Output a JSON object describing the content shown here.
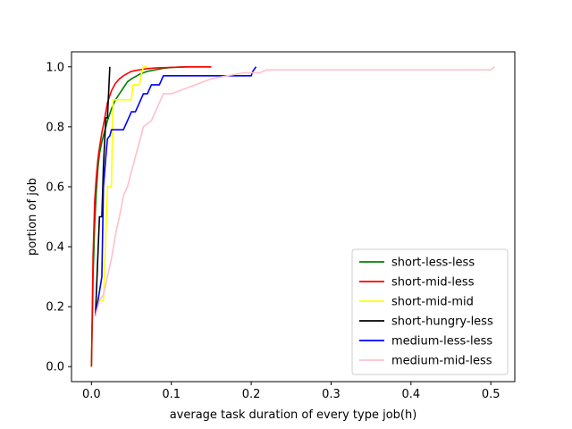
{
  "chart_data": {
    "type": "line",
    "title": "",
    "xlabel": "average task duration of every type job(h)",
    "ylabel": "portion of job",
    "xlim": [
      -0.025,
      0.53
    ],
    "ylim": [
      -0.05,
      1.05
    ],
    "x_ticks": [
      0.0,
      0.1,
      0.2,
      0.3,
      0.4,
      0.5
    ],
    "y_ticks": [
      0.0,
      0.2,
      0.4,
      0.6,
      0.8,
      1.0
    ],
    "x_tick_labels": [
      "0.0",
      "0.1",
      "0.2",
      "0.3",
      "0.4",
      "0.5"
    ],
    "y_tick_labels": [
      "0.0",
      "0.2",
      "0.4",
      "0.6",
      "0.8",
      "1.0"
    ],
    "grid": false,
    "legend_position": "lower-right",
    "series": [
      {
        "name": "short-less-less",
        "color": "#008000",
        "x": [
          0.0,
          0.002,
          0.004,
          0.006,
          0.008,
          0.01,
          0.013,
          0.016,
          0.02,
          0.025,
          0.03,
          0.035,
          0.04,
          0.045,
          0.05,
          0.06,
          0.07,
          0.08,
          0.09,
          0.1,
          0.12,
          0.15
        ],
        "y": [
          0.0,
          0.3,
          0.47,
          0.58,
          0.66,
          0.71,
          0.75,
          0.78,
          0.82,
          0.86,
          0.89,
          0.91,
          0.93,
          0.95,
          0.96,
          0.975,
          0.985,
          0.99,
          0.995,
          0.998,
          1.0,
          1.0
        ]
      },
      {
        "name": "short-mid-less",
        "color": "#ff0000",
        "x": [
          0.0,
          0.002,
          0.004,
          0.006,
          0.008,
          0.01,
          0.013,
          0.016,
          0.02,
          0.025,
          0.03,
          0.035,
          0.04,
          0.045,
          0.05,
          0.06,
          0.07,
          0.08,
          0.1,
          0.12,
          0.15
        ],
        "y": [
          0.0,
          0.37,
          0.55,
          0.63,
          0.69,
          0.73,
          0.78,
          0.82,
          0.88,
          0.92,
          0.945,
          0.96,
          0.97,
          0.978,
          0.985,
          0.99,
          0.994,
          0.996,
          0.998,
          1.0,
          1.0
        ]
      },
      {
        "name": "short-mid-mid",
        "color": "#ffff00",
        "x": [
          0.005,
          0.01,
          0.015,
          0.02,
          0.025,
          0.027,
          0.03,
          0.033,
          0.04,
          0.05,
          0.052,
          0.06,
          0.062,
          0.065,
          0.07
        ],
        "y": [
          0.22,
          0.22,
          0.22,
          0.6,
          0.6,
          0.89,
          0.89,
          0.89,
          0.89,
          0.89,
          0.94,
          0.94,
          0.97,
          1.0,
          1.0
        ]
      },
      {
        "name": "short-hungry-less",
        "color": "#000000",
        "x": [
          0.005,
          0.01,
          0.013,
          0.015,
          0.018,
          0.02,
          0.023
        ],
        "y": [
          0.17,
          0.5,
          0.5,
          0.67,
          0.83,
          0.83,
          1.0
        ]
      },
      {
        "name": "medium-less-less",
        "color": "#0000ff",
        "x": [
          0.005,
          0.01,
          0.013,
          0.015,
          0.018,
          0.02,
          0.023,
          0.025,
          0.03,
          0.035,
          0.04,
          0.045,
          0.05,
          0.055,
          0.06,
          0.065,
          0.07,
          0.075,
          0.08,
          0.085,
          0.09,
          0.1,
          0.15,
          0.2,
          0.202,
          0.206
        ],
        "y": [
          0.17,
          0.25,
          0.3,
          0.6,
          0.7,
          0.76,
          0.77,
          0.79,
          0.79,
          0.79,
          0.79,
          0.82,
          0.85,
          0.85,
          0.88,
          0.91,
          0.91,
          0.94,
          0.94,
          0.94,
          0.97,
          0.97,
          0.97,
          0.97,
          0.985,
          1.0
        ]
      },
      {
        "name": "medium-mid-less",
        "color": "#ffc0cb",
        "x": [
          0.005,
          0.01,
          0.015,
          0.02,
          0.025,
          0.03,
          0.035,
          0.04,
          0.045,
          0.05,
          0.055,
          0.06,
          0.065,
          0.07,
          0.075,
          0.08,
          0.085,
          0.09,
          0.1,
          0.11,
          0.12,
          0.13,
          0.14,
          0.15,
          0.17,
          0.19,
          0.21,
          0.22,
          0.25,
          0.3,
          0.4,
          0.5,
          0.505
        ],
        "y": [
          0.17,
          0.22,
          0.24,
          0.3,
          0.36,
          0.44,
          0.5,
          0.57,
          0.6,
          0.65,
          0.7,
          0.75,
          0.8,
          0.81,
          0.82,
          0.85,
          0.88,
          0.91,
          0.91,
          0.92,
          0.93,
          0.94,
          0.95,
          0.96,
          0.97,
          0.98,
          0.98,
          0.99,
          0.99,
          0.99,
          0.99,
          0.99,
          1.0
        ]
      }
    ]
  }
}
